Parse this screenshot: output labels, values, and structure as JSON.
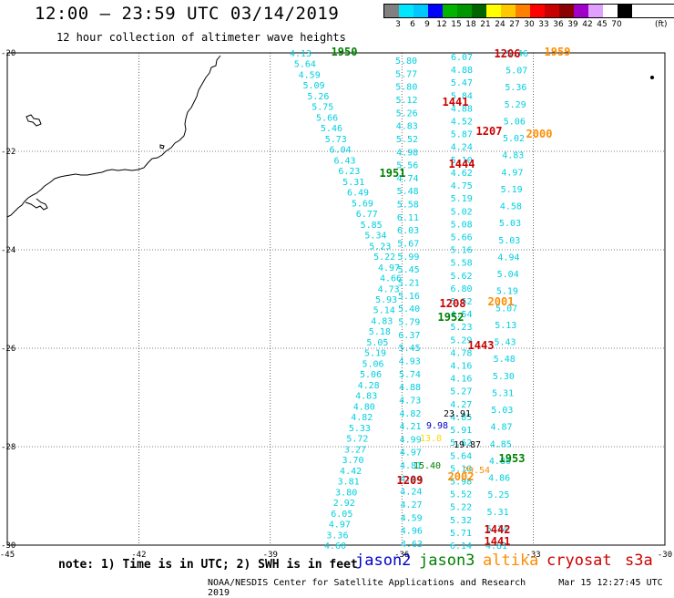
{
  "header": {
    "title": "12:00 — 23:59 UTC 03/14/2019",
    "subtitle": "12 hour collection of altimeter wave heights"
  },
  "color_scale": {
    "unit": "(ft)",
    "labels": [
      "3",
      "6",
      "9",
      "12",
      "15",
      "18",
      "21",
      "24",
      "27",
      "30",
      "33",
      "36",
      "39",
      "42",
      "45",
      "70"
    ],
    "colors": [
      "#808080",
      "#00e6ff",
      "#00c8ff",
      "#0000ff",
      "#00b400",
      "#009600",
      "#006400",
      "#ffff00",
      "#ffc800",
      "#ff8000",
      "#ff0000",
      "#c80000",
      "#8b0000",
      "#a000c8",
      "#e0a0ff",
      "#ffffff",
      "#000000"
    ]
  },
  "axes": {
    "lon_labels": [
      "-45",
      "-42",
      "-39",
      "-36",
      "-33",
      "-30"
    ],
    "lat_labels": [
      "-20",
      "-22",
      "-24",
      "-26",
      "-28",
      "-30"
    ]
  },
  "satellite_colors": {
    "jason2": "#0000cc",
    "jason3": "#008000",
    "altika": "#ff8c00",
    "cryosat": "#cc0000",
    "s3a": "#cc0000"
  },
  "tracks": [
    {
      "name": "track-a",
      "satellite": "jason3",
      "values": [
        "4.13",
        "5.64",
        "4.59",
        "5.09",
        "5.26",
        "5.75",
        "5.66",
        "5.46",
        "5.73",
        "6.04",
        "6.43",
        "6.23",
        "5.31",
        "6.49",
        "5.69",
        "6.77",
        "5.85",
        "5.34",
        "5.23",
        "5.22",
        "4.97",
        "4.66",
        "4.73",
        "5.93",
        "5.14",
        "4.83",
        "5.18",
        "5.05",
        "5.19",
        "5.06",
        "5.06",
        "4.28",
        "4.83",
        "4.80",
        "4.82",
        "5.33",
        "5.72",
        "3.27",
        "3.70",
        "4.42",
        "3.81",
        "3.80",
        "2.92",
        "6.05",
        "4.97",
        "3.36",
        "4.60"
      ]
    },
    {
      "name": "track-b",
      "satellite": "jason2",
      "values": [
        "5.80",
        "5.77",
        "5.80",
        "5.12",
        "5.26",
        "4.83",
        "5.52",
        "4.98",
        "5.56",
        "4.74",
        "5.48",
        "5.58",
        "6.11",
        "6.03",
        "5.67",
        "5.99",
        "5.45",
        "5.21",
        "5.16",
        "5.40",
        "5.79",
        "6.37",
        "5.45",
        "4.93",
        "5.74",
        "4.88",
        "4.73",
        "4.82",
        "4.21",
        "4.99",
        "4.97",
        "4.81",
        "4.94",
        "4.24",
        "4.27",
        "4.59",
        "4.96",
        "4.63"
      ]
    },
    {
      "name": "track-c",
      "satellite": "cryosat",
      "values": [
        "6.07",
        "4.88",
        "5.47",
        "5.84",
        "4.88",
        "4.52",
        "5.87",
        "4.24",
        "5.10",
        "4.62",
        "4.75",
        "5.19",
        "5.02",
        "5.08",
        "5.66",
        "5.16",
        "5.58",
        "5.62",
        "6.80",
        "5.52",
        "4.54",
        "5.23",
        "5.29",
        "4.78",
        "4.16",
        "4.16",
        "5.27",
        "4.27",
        "4.85",
        "5.91",
        "5.62",
        "5.64",
        "5.10",
        "5.98",
        "5.52",
        "5.22",
        "5.32",
        "5.71",
        "6.14"
      ]
    },
    {
      "name": "track-d",
      "satellite": "s3a",
      "values": [
        "5.46",
        "5.07",
        "5.36",
        "5.29",
        "5.06",
        "5.02",
        "4.83",
        "4.97",
        "5.19",
        "4.58",
        "5.03",
        "5.03",
        "4.94",
        "5.04",
        "5.19",
        "5.07",
        "5.13",
        "5.43",
        "5.48",
        "5.30",
        "5.31",
        "5.03",
        "4.87",
        "4.85",
        "4.86",
        "4.86",
        "5.25",
        "5.31",
        "5.14",
        "4.81"
      ]
    }
  ],
  "special_values": [
    {
      "name": "value-9-98",
      "text": "9.98",
      "color": "#0000cc"
    },
    {
      "name": "value-13-8",
      "text": "13.8",
      "color": "#ffd700"
    },
    {
      "name": "value-19-87",
      "text": "19.87",
      "color": "#000000"
    },
    {
      "name": "value-15-40",
      "text": "15.40",
      "color": "#008000"
    },
    {
      "name": "value-29-54",
      "text": "29.54",
      "color": "#ff8c00"
    },
    {
      "name": "value-23-91",
      "text": "23.91",
      "color": "#000000"
    }
  ],
  "time_labels": [
    {
      "name": "time-1950",
      "text": "1950",
      "satellite": "jason3"
    },
    {
      "name": "time-1206",
      "text": "1206",
      "satellite": "cryosat"
    },
    {
      "name": "time-1959",
      "text": "1959",
      "satellite": "altika"
    },
    {
      "name": "time-1441-top",
      "text": "1441",
      "satellite": "s3a"
    },
    {
      "name": "time-1207",
      "text": "1207",
      "satellite": "cryosat"
    },
    {
      "name": "time-2000",
      "text": "2000",
      "satellite": "altika"
    },
    {
      "name": "time-1444",
      "text": "1444",
      "satellite": "s3a"
    },
    {
      "name": "time-1951",
      "text": "1951",
      "satellite": "jason3"
    },
    {
      "name": "time-1208",
      "text": "1208",
      "satellite": "cryosat"
    },
    {
      "name": "time-2001",
      "text": "2001",
      "satellite": "altika"
    },
    {
      "name": "time-1952",
      "text": "1952",
      "satellite": "jason3"
    },
    {
      "name": "time-1443",
      "text": "1443",
      "satellite": "s3a"
    },
    {
      "name": "time-1953",
      "text": "1953",
      "satellite": "jason3"
    },
    {
      "name": "time-1209",
      "text": "1209",
      "satellite": "cryosat"
    },
    {
      "name": "time-2002",
      "text": "2002",
      "satellite": "altika"
    },
    {
      "name": "time-1442",
      "text": "1442",
      "satellite": "s3a"
    },
    {
      "name": "time-1441-bottom",
      "text": "1441",
      "satellite": "s3a"
    }
  ],
  "notes": {
    "note": "note: 1) Time is in UTC; 2) SWH is in feet",
    "legend": [
      "jason2",
      "jason3",
      "altika",
      "cryosat",
      "s3a"
    ]
  },
  "footer": {
    "credit": "NOAA/NESDIS Center for Satellite Applications and Research",
    "stamp": "Mar 15 12:27:45 UTC 2019"
  }
}
